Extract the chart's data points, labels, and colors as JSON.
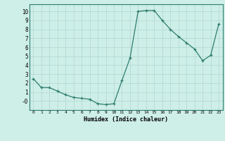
{
  "x": [
    0,
    1,
    2,
    3,
    4,
    5,
    6,
    7,
    8,
    9,
    10,
    11,
    12,
    13,
    14,
    15,
    16,
    17,
    18,
    19,
    20,
    21,
    22,
    23
  ],
  "y": [
    2.5,
    1.5,
    1.5,
    1.1,
    0.7,
    0.4,
    0.3,
    0.2,
    -0.3,
    -0.4,
    -0.3,
    2.3,
    4.8,
    10.0,
    10.1,
    10.1,
    9.0,
    8.0,
    7.2,
    6.5,
    5.8,
    4.5,
    5.1,
    8.6
  ],
  "xlabel": "Humidex (Indice chaleur)",
  "line_color": "#2d7d6e",
  "marker": "+",
  "background_color": "#ceeee8",
  "grid_color": "#b0d8d0",
  "xlim": [
    -0.5,
    23.5
  ],
  "ylim": [
    -1.0,
    10.8
  ],
  "yticks": [
    0,
    1,
    2,
    3,
    4,
    5,
    6,
    7,
    8,
    9,
    10
  ],
  "ytick_labels": [
    "-0",
    "1",
    "2",
    "3",
    "4",
    "5",
    "6",
    "7",
    "8",
    "9",
    "10"
  ],
  "xticks": [
    0,
    1,
    2,
    3,
    4,
    5,
    6,
    7,
    8,
    9,
    10,
    11,
    12,
    13,
    14,
    15,
    16,
    17,
    18,
    19,
    20,
    21,
    22,
    23
  ],
  "xtick_labels": [
    "0",
    "1",
    "2",
    "3",
    "4",
    "5",
    "6",
    "7",
    "8",
    "9",
    "10",
    "11",
    "12",
    "13",
    "14",
    "15",
    "16",
    "17",
    "18",
    "19",
    "20",
    "21",
    "22",
    "23"
  ]
}
